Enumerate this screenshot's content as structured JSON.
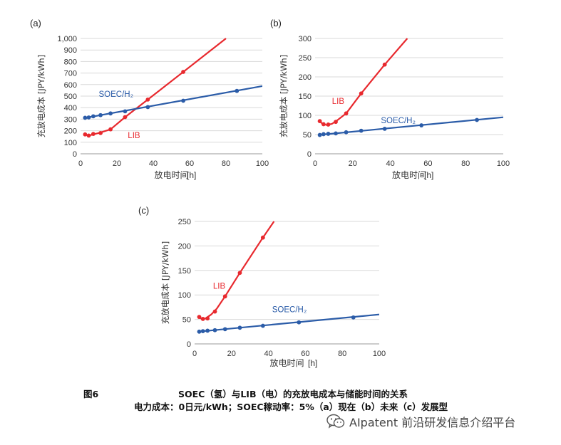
{
  "chart_data": [
    {
      "type": "line",
      "panel_label": "(a)",
      "ylabel": "充放电成本 [JPY/kWh]",
      "xlabel": "放电时间",
      "xunit": "[h]",
      "xlim": [
        0,
        100
      ],
      "ylim": [
        0,
        1000
      ],
      "xticks": [
        0,
        20,
        40,
        60,
        80,
        100
      ],
      "yticks": [
        0,
        100,
        200,
        300,
        400,
        500,
        600,
        700,
        800,
        900,
        1000
      ],
      "yticklabels": [
        "0",
        "100",
        "200",
        "300",
        "400",
        "500",
        "600",
        "700",
        "800",
        "900",
        "1,000"
      ],
      "grid": "horizontal",
      "legend": "inline labels",
      "series": [
        {
          "name": "LIB",
          "color": "#e8292e",
          "x": [
            2.5,
            4.5,
            7,
            11,
            16.5,
            24.5,
            37,
            56.5
          ],
          "y": [
            168,
            158,
            172,
            180,
            212,
            318,
            470,
            710
          ],
          "line_x": [
            2,
            3,
            4.5,
            7,
            10,
            13,
            16.5,
            24.5,
            37,
            56.5,
            80
          ],
          "line_y": [
            170,
            163,
            158,
            168,
            180,
            195,
            212,
            318,
            470,
            710,
            1000
          ],
          "label_pos": [
            26,
            135
          ]
        },
        {
          "name": "SOEC/H₂",
          "color": "#2b5ca8",
          "x": [
            2.5,
            4.5,
            7,
            11,
            16.5,
            24.5,
            37,
            56.5,
            86
          ],
          "y": [
            312,
            315,
            325,
            335,
            350,
            368,
            405,
            460,
            545
          ],
          "line_x": [
            2,
            100
          ],
          "line_y": [
            310,
            587
          ],
          "label_pos": [
            10,
            495
          ]
        }
      ]
    },
    {
      "type": "line",
      "panel_label": "(b)",
      "ylabel": "充放电成本 [JPY/kWh]",
      "xlabel": "放电时间",
      "xunit": "[h]",
      "xlim": [
        0,
        100
      ],
      "ylim": [
        0,
        300
      ],
      "xticks": [
        0,
        20,
        40,
        60,
        80,
        100
      ],
      "yticks": [
        0,
        50,
        100,
        150,
        200,
        250,
        300
      ],
      "yticklabels": [
        "0",
        "50",
        "100",
        "150",
        "200",
        "250",
        "300"
      ],
      "grid": "horizontal",
      "legend": "inline labels",
      "series": [
        {
          "name": "LIB",
          "color": "#e8292e",
          "x": [
            2.5,
            4.5,
            7,
            11,
            16.5,
            24.5,
            37
          ],
          "y": [
            85,
            77,
            76,
            83,
            105,
            157,
            232
          ],
          "line_x": [
            2,
            4,
            6,
            9,
            12,
            16.5,
            24.5,
            37,
            49
          ],
          "line_y": [
            86,
            78,
            75,
            78,
            88,
            105,
            157,
            232,
            300
          ],
          "label_pos": [
            9,
            130
          ]
        },
        {
          "name": "SOEC/H₂",
          "color": "#2b5ca8",
          "x": [
            2.5,
            4.5,
            7,
            11,
            16.5,
            24.5,
            37,
            56.5,
            86
          ],
          "y": [
            49,
            51,
            52,
            53,
            56,
            60,
            65,
            74,
            88
          ],
          "line_x": [
            2,
            100
          ],
          "line_y": [
            49,
            95
          ],
          "label_pos": [
            35,
            80
          ]
        }
      ]
    },
    {
      "type": "line",
      "panel_label": "(c)",
      "ylabel": "充放电成本 [JPY/kWh]",
      "xlabel": "放电时间",
      "xunit": "[h]",
      "xlim": [
        0,
        100
      ],
      "ylim": [
        0,
        250
      ],
      "xticks": [
        0,
        20,
        40,
        60,
        80,
        100
      ],
      "yticks": [
        0,
        50,
        100,
        150,
        200,
        250
      ],
      "yticklabels": [
        "0",
        "50",
        "100",
        "150",
        "200",
        "250"
      ],
      "grid": "horizontal",
      "legend": "inline labels",
      "series": [
        {
          "name": "LIB",
          "color": "#e8292e",
          "x": [
            2.5,
            4.5,
            7,
            11,
            16.5,
            24.5,
            37
          ],
          "y": [
            55,
            51,
            52,
            66,
            97,
            145,
            217
          ],
          "line_x": [
            2,
            4,
            6,
            9,
            12,
            16.5,
            24.5,
            37,
            43
          ],
          "line_y": [
            55,
            51,
            52,
            60,
            72,
            97,
            145,
            217,
            250
          ],
          "label_pos": [
            10,
            113
          ]
        },
        {
          "name": "SOEC/H₂",
          "color": "#2b5ca8",
          "x": [
            2.5,
            4.5,
            7,
            11,
            16.5,
            24.5,
            37,
            56.5,
            86
          ],
          "y": [
            25,
            26,
            27,
            28,
            30,
            33,
            37,
            44,
            54
          ],
          "line_x": [
            2,
            100
          ],
          "line_y": [
            25,
            60
          ],
          "label_pos": [
            42,
            65
          ]
        }
      ]
    }
  ],
  "caption": {
    "fig_label": "图6",
    "title": "SOEC（氢）与LIB（电）的充放电成本与储能时间的关系",
    "subtitle": "电力成本：0日元/kWh；SOEC稼动率：5%（a）现在（b）未来（c）发展型"
  },
  "watermark": {
    "icon": "wechat-icon",
    "text": "AIpatent 前沿研发信息介绍平台"
  }
}
